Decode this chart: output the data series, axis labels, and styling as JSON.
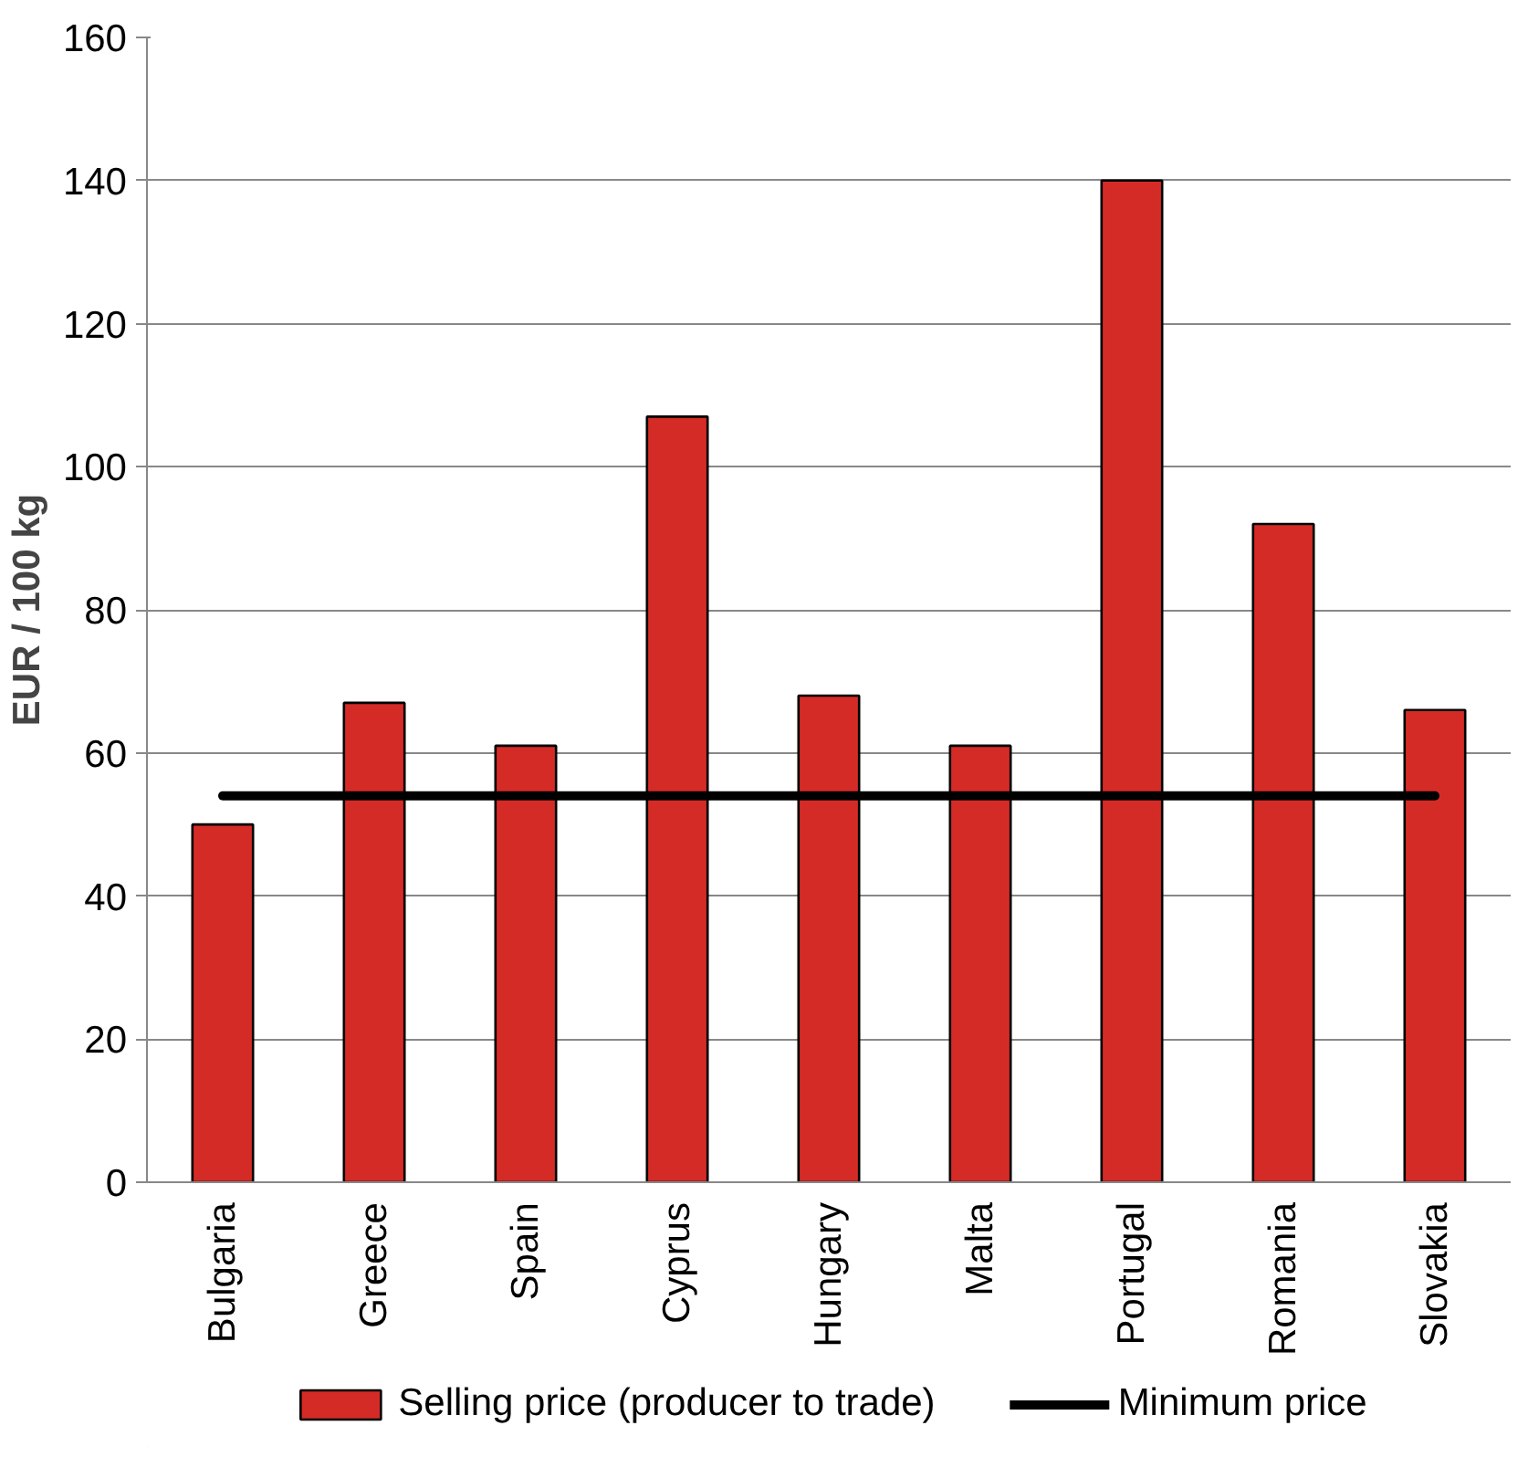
{
  "chart_data": {
    "type": "bar",
    "ylabel": "EUR / 100 kg",
    "categories": [
      "Bulgaria",
      "Greece",
      "Spain",
      "Cyprus",
      "Hungary",
      "Malta",
      "Portugal",
      "Romania",
      "Slovakia"
    ],
    "series": [
      {
        "name": "Selling price (producer to trade)",
        "color": "#d52b27",
        "values": [
          50,
          67,
          61,
          107,
          68,
          61,
          140,
          92,
          66
        ]
      },
      {
        "name": "Minimum price",
        "type": "line",
        "color": "#000000",
        "values": [
          54,
          54,
          54,
          54,
          54,
          54,
          54,
          54,
          54
        ]
      }
    ],
    "ylim": [
      0,
      160
    ],
    "yticks": [
      0,
      20,
      40,
      60,
      80,
      100,
      120,
      140,
      160
    ],
    "grid": "y",
    "legend": "bottom"
  }
}
